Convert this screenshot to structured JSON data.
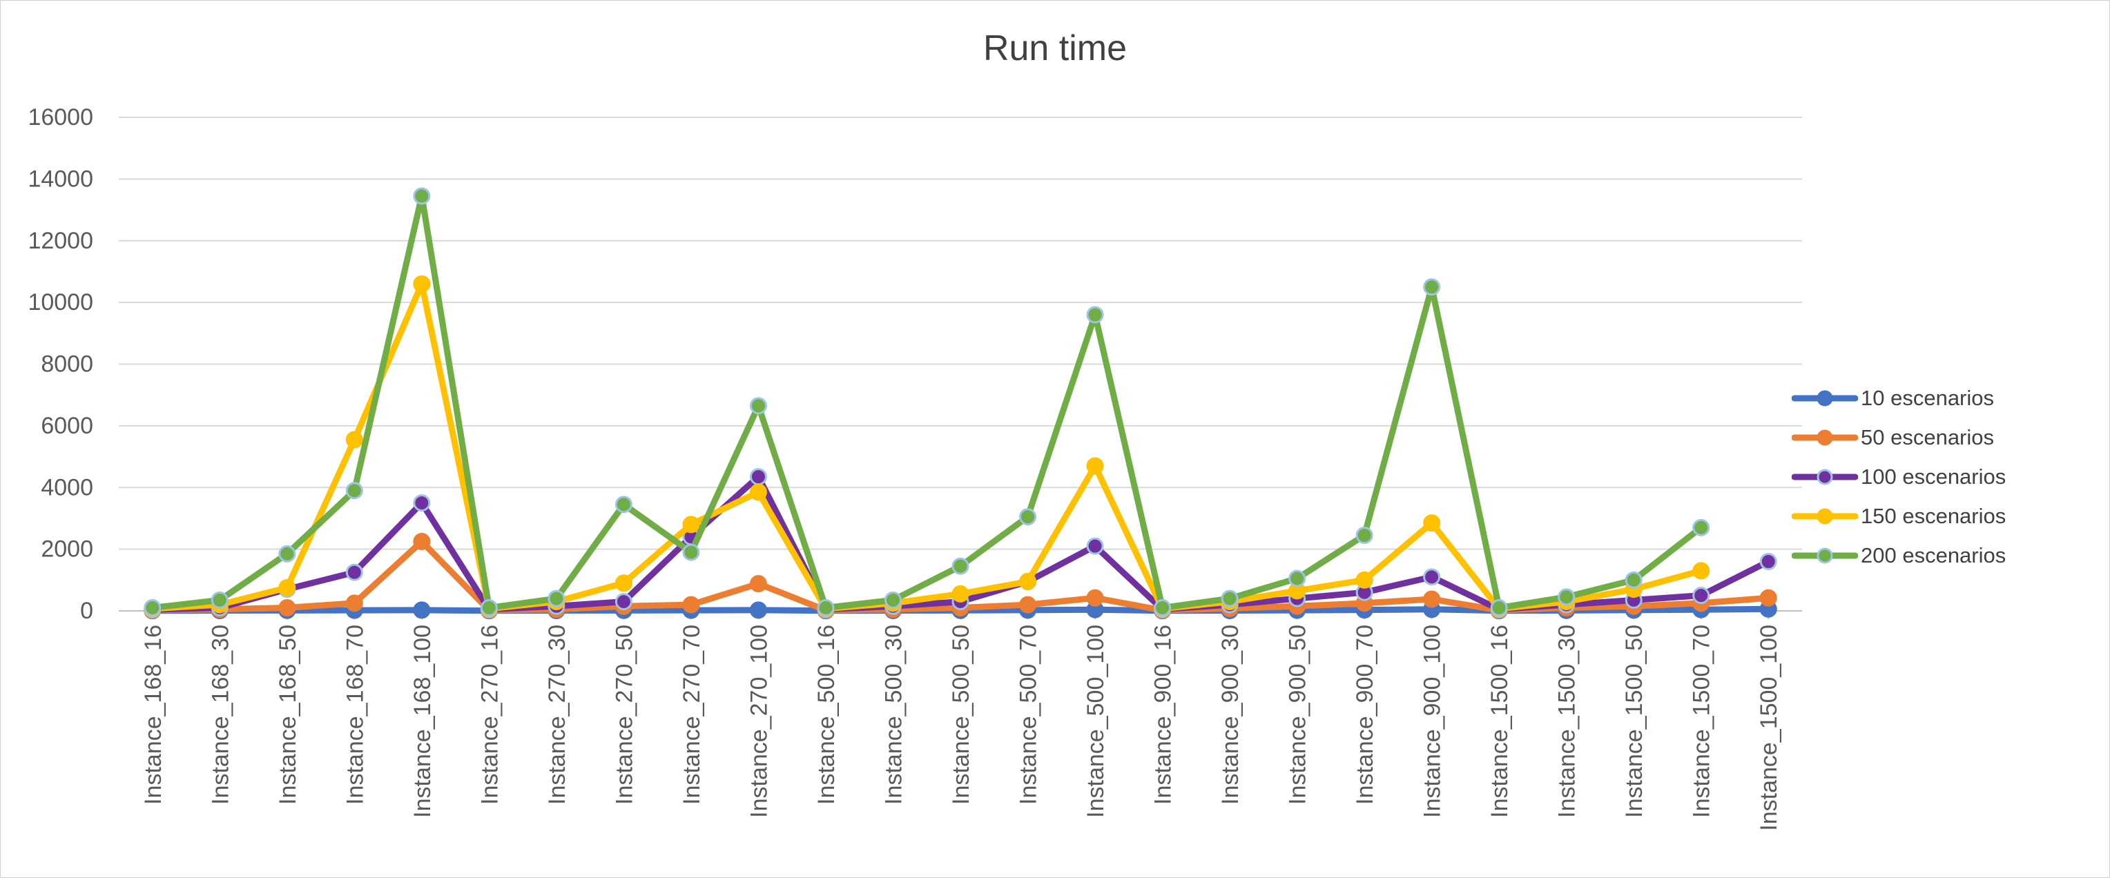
{
  "chart_data": {
    "type": "line",
    "title": "Run time",
    "xlabel": "",
    "ylabel": "",
    "ylim": [
      0,
      16000
    ],
    "yticks": [
      0,
      2000,
      4000,
      6000,
      8000,
      10000,
      12000,
      14000,
      16000
    ],
    "grid": true,
    "legend_position": "right",
    "categories": [
      "Instance_168_16",
      "Instance_168_30",
      "Instance_168_50",
      "Instance_168_70",
      "Instance_168_100",
      "Instance_270_16",
      "Instance_270_30",
      "Instance_270_50",
      "Instance_270_70",
      "Instance_270_100",
      "Instance_500_16",
      "Instance_500_30",
      "Instance_500_50",
      "Instance_500_70",
      "Instance_500_100",
      "Instance_900_16",
      "Instance_900_30",
      "Instance_900_50",
      "Instance_900_70",
      "Instance_900_100",
      "Instance_1500_16",
      "Instance_1500_30",
      "Instance_1500_50",
      "Instance_1500_70",
      "Instance_1500_100"
    ],
    "series": [
      {
        "name": "10 escenarios",
        "color": "#4472C4",
        "values": [
          5,
          10,
          15,
          20,
          25,
          5,
          10,
          15,
          20,
          25,
          5,
          10,
          15,
          25,
          40,
          5,
          10,
          20,
          30,
          50,
          5,
          15,
          25,
          40,
          60
        ]
      },
      {
        "name": "50 escenarios",
        "color": "#ED7D31",
        "values": [
          20,
          50,
          100,
          250,
          2250,
          20,
          50,
          150,
          200,
          880,
          20,
          50,
          100,
          200,
          420,
          20,
          80,
          150,
          250,
          380,
          20,
          100,
          150,
          250,
          420
        ]
      },
      {
        "name": "100 escenarios",
        "color": "#7030A0",
        "values": [
          40,
          100,
          700,
          1250,
          3500,
          50,
          150,
          300,
          2400,
          4350,
          50,
          150,
          300,
          950,
          2100,
          50,
          200,
          400,
          600,
          1100,
          50,
          200,
          350,
          500,
          1600
        ]
      },
      {
        "name": "150 escenarios",
        "color": "#FFC000",
        "values": [
          70,
          200,
          750,
          5550,
          10600,
          70,
          300,
          900,
          2800,
          3850,
          70,
          250,
          550,
          950,
          4700,
          70,
          300,
          650,
          1000,
          2850,
          70,
          300,
          700,
          1300,
          null
        ]
      },
      {
        "name": "200 escenarios",
        "color": "#70AD47",
        "values": [
          100,
          350,
          1850,
          3900,
          13450,
          100,
          400,
          3450,
          1900,
          6650,
          100,
          350,
          1450,
          3050,
          9600,
          100,
          400,
          1050,
          2450,
          10500,
          100,
          450,
          1000,
          2700,
          null
        ]
      }
    ]
  }
}
